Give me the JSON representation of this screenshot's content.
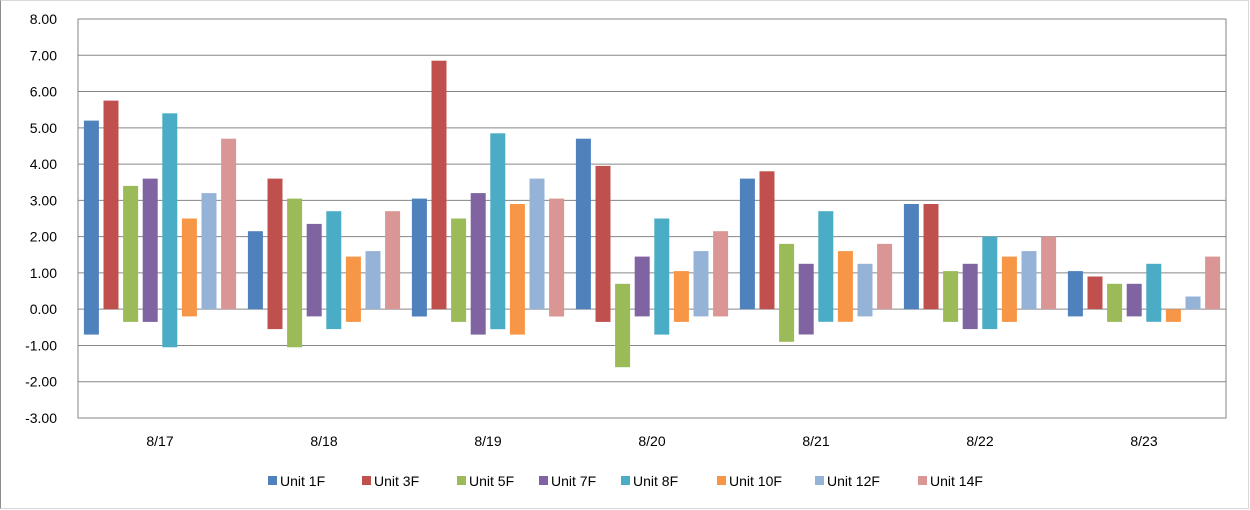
{
  "chart_data": {
    "type": "bar",
    "title": "",
    "xlabel": "",
    "ylabel": "",
    "ylim": [
      -3,
      8
    ],
    "yticks": [
      "8.00",
      "7.00",
      "6.00",
      "5.00",
      "4.00",
      "3.00",
      "2.00",
      "1.00",
      "0.00",
      "-1.00",
      "-2.00",
      "-3.00"
    ],
    "grid": true,
    "legend_position": "bottom",
    "categories": [
      "8/17",
      "8/18",
      "8/19",
      "8/20",
      "8/21",
      "8/22",
      "8/23"
    ],
    "series": [
      {
        "name": "Unit 1F",
        "color": "#4F81BD",
        "max": [
          5.2,
          2.15,
          3.05,
          4.7,
          3.6,
          2.9,
          1.05
        ],
        "min": [
          -0.7,
          0,
          -0.2,
          0,
          0,
          0,
          -0.2
        ]
      },
      {
        "name": "Unit 3F",
        "color": "#C0504D",
        "max": [
          5.75,
          3.6,
          6.85,
          3.95,
          3.8,
          2.9,
          0.9
        ],
        "min": [
          0,
          -0.55,
          0,
          -0.35,
          0,
          0,
          0
        ]
      },
      {
        "name": "Unit 5F",
        "color": "#9BBB59",
        "max": [
          3.4,
          3.05,
          2.5,
          0.7,
          1.8,
          1.05,
          0.7
        ],
        "min": [
          -0.35,
          -1.05,
          -0.35,
          -1.6,
          -0.9,
          -0.35,
          -0.35
        ]
      },
      {
        "name": "Unit 7F",
        "color": "#8064A2",
        "max": [
          3.6,
          2.35,
          3.2,
          1.45,
          1.25,
          1.25,
          0.7
        ],
        "min": [
          -0.35,
          -0.2,
          -0.7,
          -0.2,
          -0.7,
          -0.55,
          -0.2
        ]
      },
      {
        "name": "Unit 8F",
        "color": "#4BACC6",
        "max": [
          5.4,
          2.7,
          4.85,
          2.5,
          2.7,
          2.0,
          1.25
        ],
        "min": [
          -1.05,
          -0.55,
          -0.55,
          -0.7,
          -0.35,
          -0.55,
          -0.35
        ]
      },
      {
        "name": "Unit 10F",
        "color": "#F79646",
        "max": [
          2.5,
          1.45,
          2.9,
          1.05,
          1.6,
          1.45,
          0
        ],
        "min": [
          -0.2,
          -0.35,
          -0.7,
          -0.35,
          -0.35,
          -0.35,
          -0.35
        ]
      },
      {
        "name": "Unit 12F",
        "color": "#95B3D7",
        "max": [
          3.2,
          1.6,
          3.6,
          1.6,
          1.25,
          1.6,
          0.35
        ],
        "min": [
          0,
          0,
          0,
          -0.2,
          -0.2,
          0,
          0
        ]
      },
      {
        "name": "Unit 14F",
        "color": "#D99694",
        "max": [
          4.7,
          2.7,
          3.05,
          2.15,
          1.8,
          2.0,
          1.45
        ],
        "min": [
          0,
          0,
          -0.2,
          -0.2,
          0,
          0,
          0
        ]
      }
    ]
  }
}
